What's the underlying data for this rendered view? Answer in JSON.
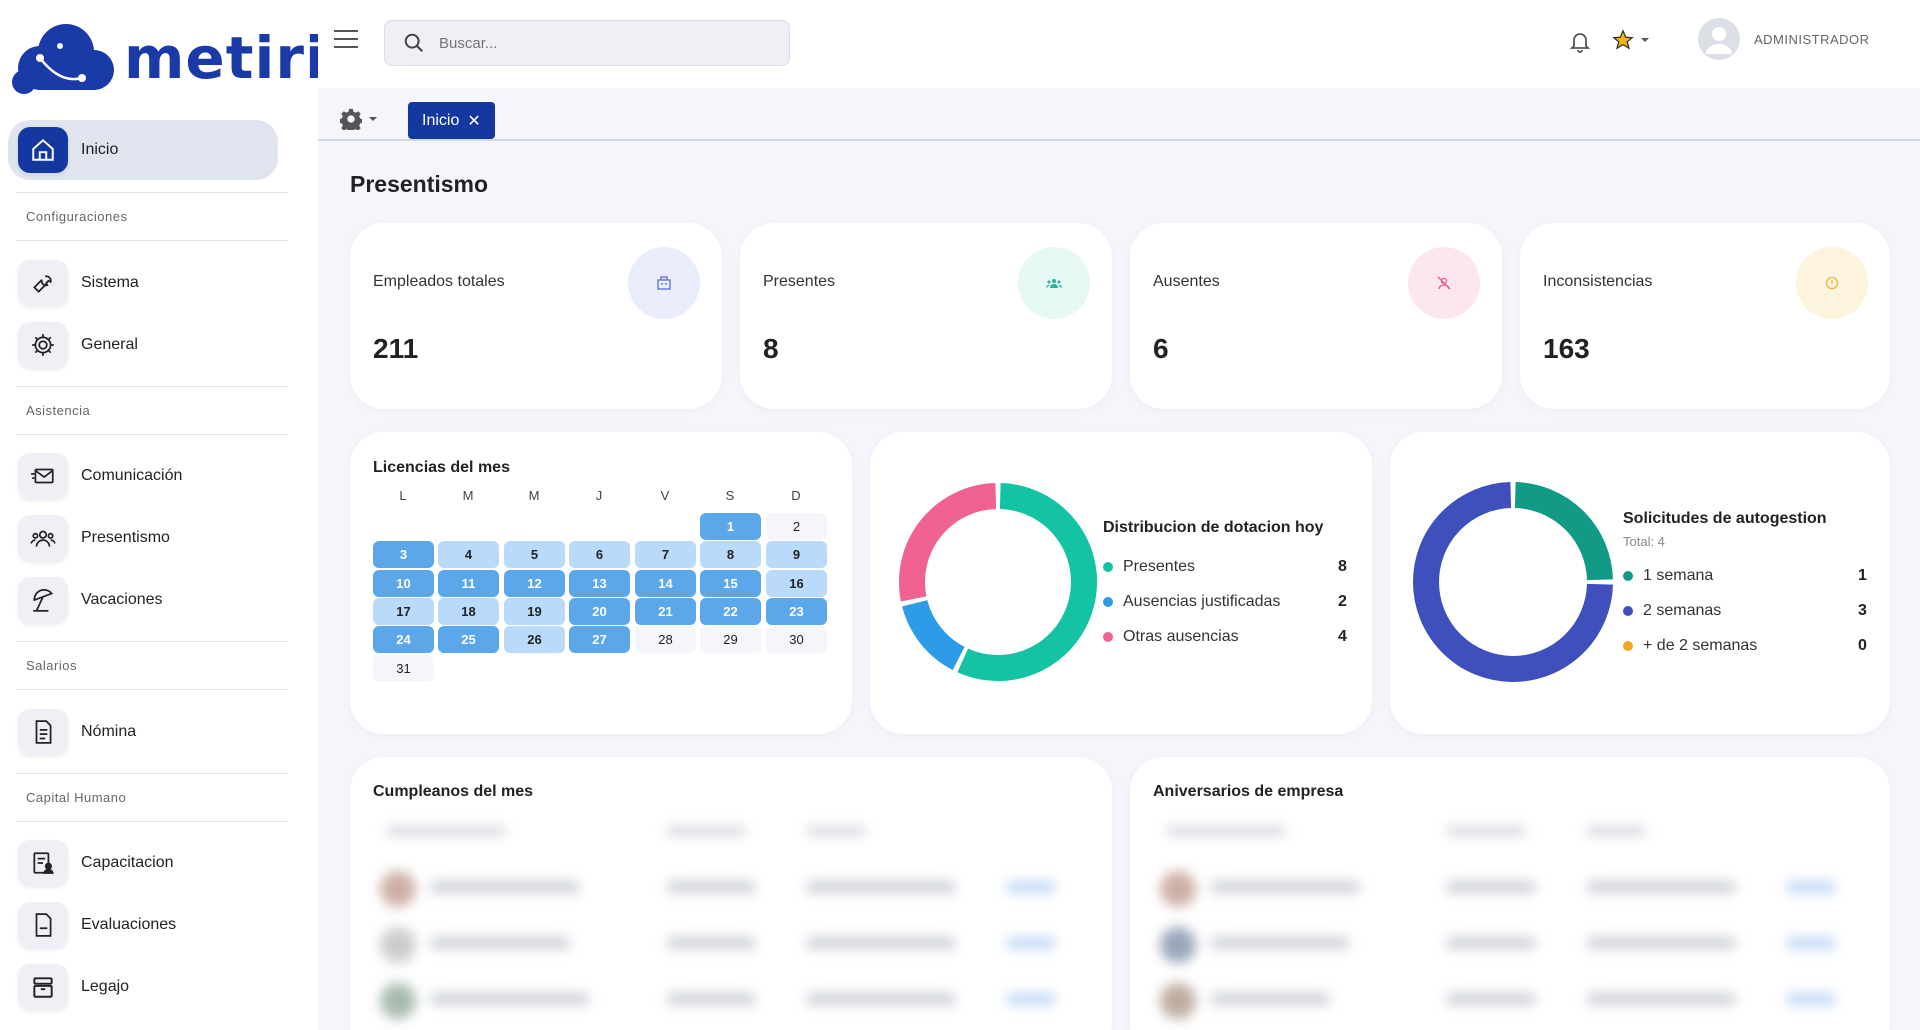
{
  "brand": {
    "name": "metiri",
    "color": "#1a3aa8"
  },
  "sidebar": {
    "active": {
      "label": "Inicio",
      "icon": "home-icon"
    },
    "sections": [
      {
        "title": "Configuraciones",
        "items": [
          {
            "label": "Sistema",
            "icon": "wrench-icon"
          },
          {
            "label": "General",
            "icon": "gear-icon"
          }
        ]
      },
      {
        "title": "Asistencia",
        "items": [
          {
            "label": "Comunicación",
            "icon": "envelope-icon"
          },
          {
            "label": "Presentismo",
            "icon": "people-icon"
          },
          {
            "label": "Vacaciones",
            "icon": "beach-umbrella-icon"
          }
        ]
      },
      {
        "title": "Salarios",
        "items": [
          {
            "label": "Nómina",
            "icon": "document-icon"
          }
        ]
      },
      {
        "title": "Capital Humano",
        "items": [
          {
            "label": "Capacitacion",
            "icon": "clipboard-user-icon"
          },
          {
            "label": "Evaluaciones",
            "icon": "file-icon"
          },
          {
            "label": "Legajo",
            "icon": "archive-icon"
          }
        ]
      }
    ]
  },
  "topbar": {
    "search_placeholder": "Buscar...",
    "user_name": "ADMINISTRADOR"
  },
  "tabs": [
    {
      "label": "Inicio"
    }
  ],
  "page": {
    "title": "Presentismo"
  },
  "stats": [
    {
      "label": "Empleados totales",
      "value": "211",
      "icon": "building-icon",
      "bg": "#e9ecfb",
      "fg": "#5a6bd6"
    },
    {
      "label": "Presentes",
      "value": "8",
      "icon": "group-icon",
      "bg": "#e6f8f3",
      "fg": "#2bb39a"
    },
    {
      "label": "Ausentes",
      "value": "6",
      "icon": "user-off-icon",
      "bg": "#fde7ee",
      "fg": "#e85d8a"
    },
    {
      "label": "Inconsistencias",
      "value": "163",
      "icon": "alert-circle-icon",
      "bg": "#fdf4dd",
      "fg": "#e8b53a"
    }
  ],
  "calendar": {
    "title": "Licencias del mes",
    "weekdays": [
      "L",
      "M",
      "M",
      "J",
      "V",
      "S",
      "D"
    ],
    "days": [
      {
        "d": "1",
        "s": "dark"
      },
      {
        "d": "2",
        "s": "plain"
      },
      {
        "d": "3",
        "s": "dark"
      },
      {
        "d": "4",
        "s": "light"
      },
      {
        "d": "5",
        "s": "light"
      },
      {
        "d": "6",
        "s": "light"
      },
      {
        "d": "7",
        "s": "light"
      },
      {
        "d": "8",
        "s": "light"
      },
      {
        "d": "9",
        "s": "light"
      },
      {
        "d": "10",
        "s": "dark"
      },
      {
        "d": "11",
        "s": "dark"
      },
      {
        "d": "12",
        "s": "dark"
      },
      {
        "d": "13",
        "s": "dark"
      },
      {
        "d": "14",
        "s": "dark"
      },
      {
        "d": "15",
        "s": "dark"
      },
      {
        "d": "16",
        "s": "light"
      },
      {
        "d": "17",
        "s": "light"
      },
      {
        "d": "18",
        "s": "light"
      },
      {
        "d": "19",
        "s": "light"
      },
      {
        "d": "20",
        "s": "dark"
      },
      {
        "d": "21",
        "s": "dark"
      },
      {
        "d": "22",
        "s": "dark"
      },
      {
        "d": "23",
        "s": "dark"
      },
      {
        "d": "24",
        "s": "dark"
      },
      {
        "d": "25",
        "s": "dark"
      },
      {
        "d": "26",
        "s": "light"
      },
      {
        "d": "27",
        "s": "dark"
      },
      {
        "d": "28",
        "s": "plain"
      },
      {
        "d": "29",
        "s": "plain"
      },
      {
        "d": "30",
        "s": "plain"
      },
      {
        "d": "31",
        "s": "plain"
      }
    ]
  },
  "chart_data": [
    {
      "type": "pie",
      "title": "Distribucion de dotacion hoy",
      "categories": [
        "Presentes",
        "Ausencias justificadas",
        "Otras ausencias"
      ],
      "values": [
        8,
        2,
        4
      ],
      "colors": [
        "#13c3a3",
        "#2e9be8",
        "#f06292"
      ],
      "legend": "right"
    },
    {
      "type": "pie",
      "title": "Solicitudes de autogestion",
      "subtitle": "Total: 4",
      "categories": [
        "1 semana",
        "2 semanas",
        "+ de 2 semanas"
      ],
      "values": [
        1,
        3,
        0
      ],
      "colors": [
        "#119a86",
        "#3f4fbb",
        "#f5a623"
      ],
      "legend": "right"
    }
  ],
  "lists": {
    "birthdays_title": "Cumpleanos del mes",
    "anniversaries_title": "Aniversarios de empresa"
  }
}
